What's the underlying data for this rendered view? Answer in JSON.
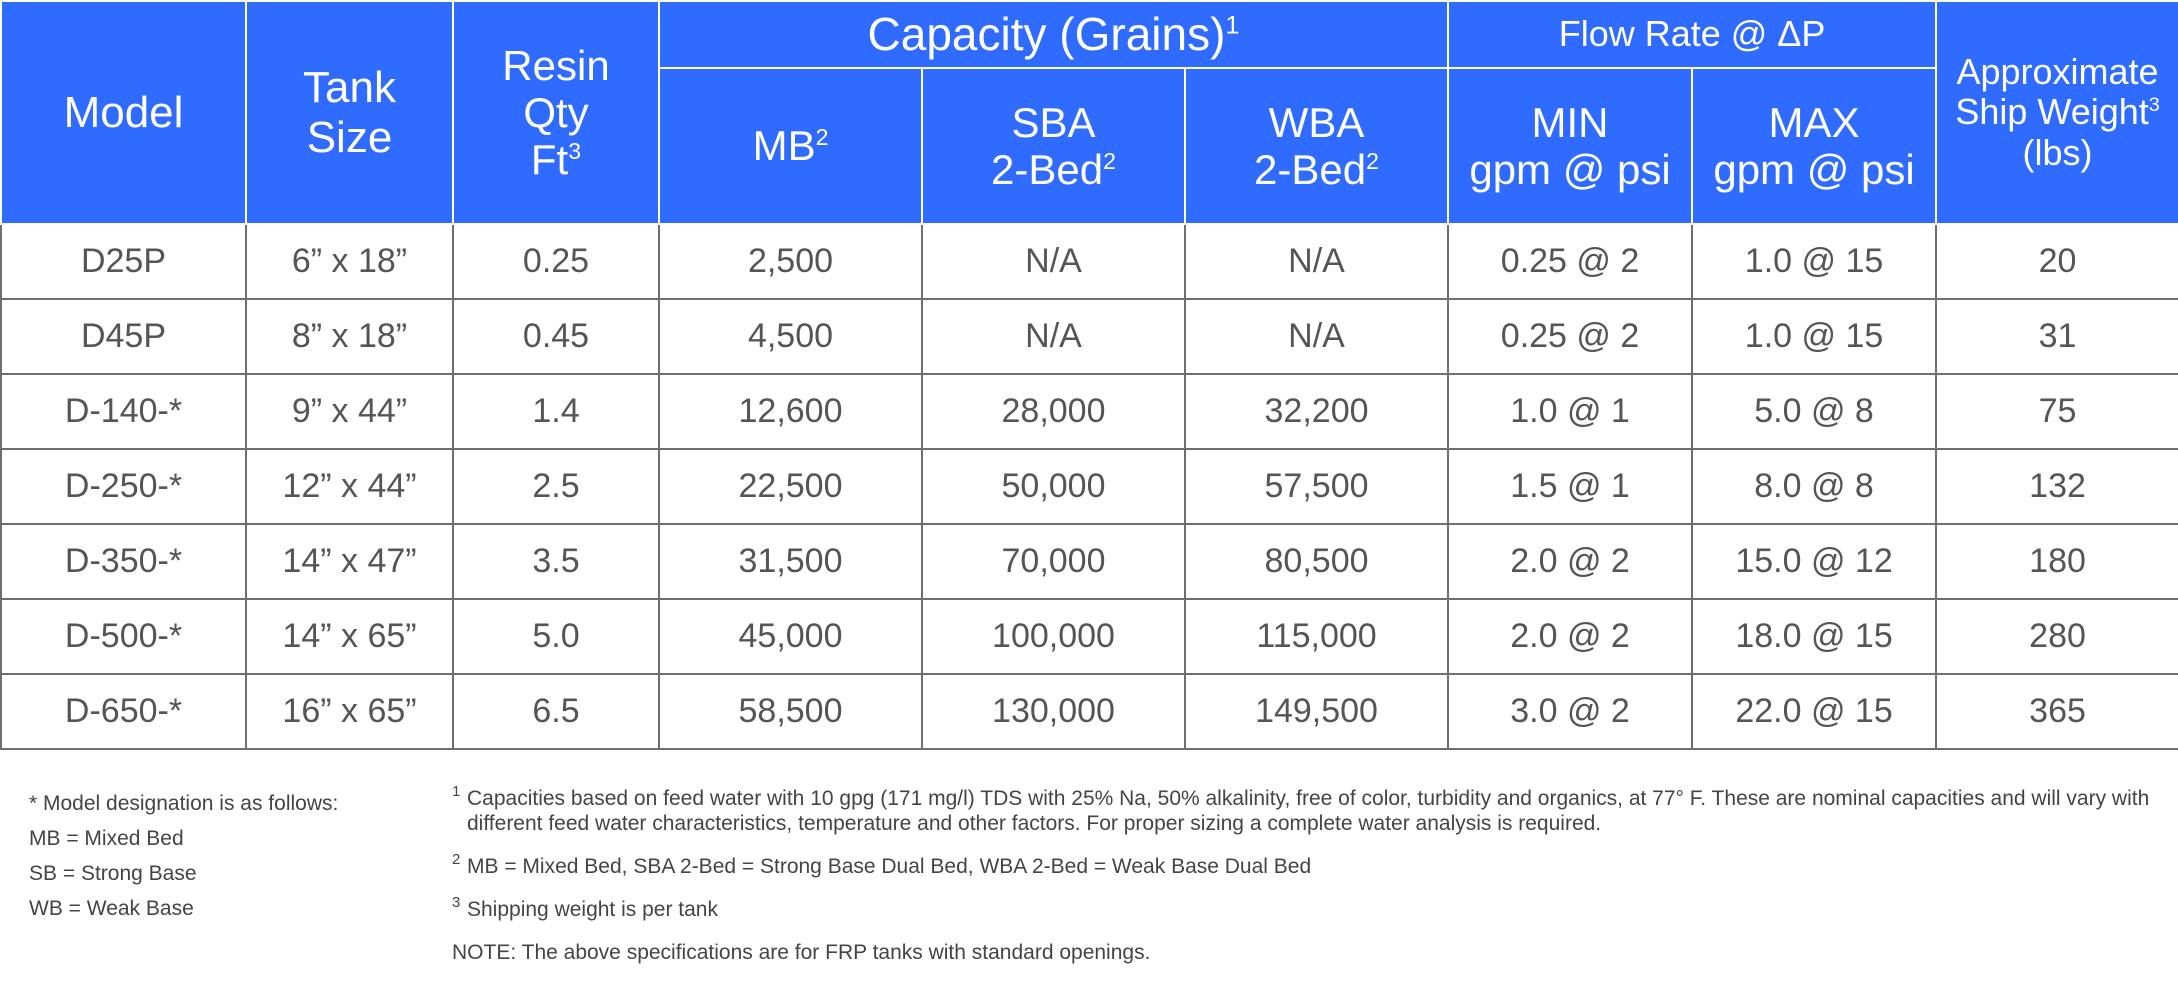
{
  "headers": {
    "model": "Model",
    "tank_size": [
      "Tank",
      "Size"
    ],
    "resin_qty": [
      "Resin",
      "Qty",
      "Ft"
    ],
    "resin_qty_sup": "3",
    "capacity": "Capacity (Grains)",
    "capacity_sup": "1",
    "flow_rate": "Flow Rate @ ΔP",
    "mb": "MB",
    "mb_sup": "2",
    "sba": [
      "SBA",
      "2-Bed"
    ],
    "sba_sup": "2",
    "wba": [
      "WBA",
      "2-Bed"
    ],
    "wba_sup": "2",
    "min": [
      "MIN",
      "gpm @ psi"
    ],
    "max": [
      "MAX",
      "gpm @ psi"
    ],
    "ship_weight": [
      "Approximate",
      "Ship Weight",
      "(lbs)"
    ],
    "ship_weight_sup": "3"
  },
  "rows": [
    [
      "D25P",
      "6” x 18”",
      "0.25",
      "2,500",
      "N/A",
      "N/A",
      "0.25 @ 2",
      "1.0 @ 15",
      "20"
    ],
    [
      "D45P",
      "8” x 18”",
      "0.45",
      "4,500",
      "N/A",
      "N/A",
      "0.25 @ 2",
      "1.0 @ 15",
      "31"
    ],
    [
      "D-140-*",
      "9” x 44”",
      "1.4",
      "12,600",
      "28,000",
      "32,200",
      "1.0 @ 1",
      "5.0 @ 8",
      "75"
    ],
    [
      "D-250-*",
      "12” x 44”",
      "2.5",
      "22,500",
      "50,000",
      "57,500",
      "1.5 @ 1",
      "8.0 @ 8",
      "132"
    ],
    [
      "D-350-*",
      "14” x 47”",
      "3.5",
      "31,500",
      "70,000",
      "80,500",
      "2.0 @ 2",
      "15.0 @ 12",
      "180"
    ],
    [
      "D-500-*",
      "14” x 65”",
      "5.0",
      "45,000",
      "100,000",
      "115,000",
      "2.0 @ 2",
      "18.0 @ 15",
      "280"
    ],
    [
      "D-650-*",
      "16” x 65”",
      "6.5",
      "58,500",
      "130,000",
      "149,500",
      "3.0 @ 2",
      "22.0 @ 15",
      "365"
    ]
  ],
  "legend": [
    "* Model designation is as follows:",
    "MB = Mixed Bed",
    "SB = Strong Base",
    "WB = Weak Base"
  ],
  "footnotes": [
    {
      "num": "1",
      "text": "Capacities based on feed water with 10 gpg (171 mg/l) TDS with 25% Na, 50% alkalinity, free of color, turbidity and organics, at 77° F.  These are nominal capacities and will vary with different feed water characteristics, temperature and other factors. For proper sizing a complete water analysis is required."
    },
    {
      "num": "2",
      "text": "MB = Mixed Bed, SBA 2-Bed = Strong Base Dual Bed, WBA 2-Bed = Weak Base Dual Bed"
    },
    {
      "num": "3",
      "text": "Shipping weight is per tank"
    }
  ],
  "note": "NOTE: The above specifications are for FRP tanks with standard openings.",
  "colors": {
    "header_bg": "#2f6bff",
    "header_text": "#ffffff",
    "grid": "#6e6e6e",
    "body_text": "#555555"
  }
}
